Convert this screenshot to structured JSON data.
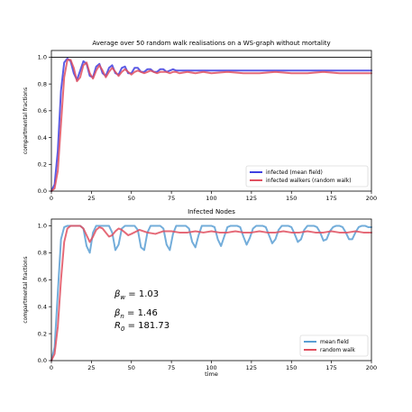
{
  "chart_data": [
    {
      "type": "line",
      "title": "Average over 50 random walk realisations on a WS-graph without mortality",
      "xlabel": "",
      "ylabel": "compartmental fractions",
      "xlim": [
        0,
        200
      ],
      "ylim": [
        0,
        1.05
      ],
      "xticks": [
        0,
        25,
        50,
        75,
        100,
        125,
        150,
        175,
        200
      ],
      "yticks": [
        0.0,
        0.2,
        0.4,
        0.6,
        0.8,
        1.0
      ],
      "ytick_labels": [
        "0.0",
        "0.2",
        "0.4",
        "0.6",
        "0.8",
        "1.0"
      ],
      "hline": 1.0,
      "legend_position": "bottom-right",
      "grid": false,
      "series": [
        {
          "name": "infected (mean field)",
          "color": "#4040e0",
          "x": [
            0,
            2,
            4,
            6,
            8,
            10,
            12,
            14,
            16,
            18,
            20,
            22,
            24,
            26,
            28,
            30,
            32,
            34,
            36,
            38,
            40,
            42,
            44,
            46,
            48,
            50,
            52,
            54,
            56,
            58,
            60,
            62,
            64,
            66,
            68,
            70,
            72,
            74,
            76,
            78,
            80,
            85,
            90,
            95,
            100,
            110,
            120,
            130,
            140,
            150,
            160,
            170,
            180,
            190,
            200
          ],
          "y": [
            0.0,
            0.05,
            0.3,
            0.75,
            0.96,
            0.99,
            0.97,
            0.88,
            0.83,
            0.9,
            0.97,
            0.95,
            0.86,
            0.85,
            0.93,
            0.95,
            0.88,
            0.86,
            0.92,
            0.94,
            0.88,
            0.87,
            0.92,
            0.93,
            0.88,
            0.88,
            0.92,
            0.92,
            0.89,
            0.89,
            0.91,
            0.91,
            0.89,
            0.89,
            0.91,
            0.91,
            0.89,
            0.9,
            0.91,
            0.9,
            0.9,
            0.9,
            0.9,
            0.9,
            0.9,
            0.9,
            0.9,
            0.9,
            0.9,
            0.9,
            0.9,
            0.9,
            0.9,
            0.9,
            0.9
          ]
        },
        {
          "name": "infected walkers  (random walk)",
          "color": "#e05060",
          "x": [
            0,
            2,
            4,
            6,
            8,
            10,
            12,
            14,
            16,
            18,
            20,
            22,
            24,
            26,
            28,
            30,
            32,
            34,
            36,
            38,
            40,
            42,
            44,
            46,
            48,
            50,
            52,
            54,
            56,
            58,
            60,
            62,
            64,
            66,
            68,
            70,
            72,
            74,
            76,
            78,
            80,
            85,
            90,
            95,
            100,
            110,
            120,
            130,
            140,
            150,
            160,
            170,
            180,
            190,
            200
          ],
          "y": [
            0.0,
            0.02,
            0.15,
            0.5,
            0.85,
            0.98,
            0.98,
            0.92,
            0.82,
            0.85,
            0.94,
            0.96,
            0.88,
            0.84,
            0.9,
            0.94,
            0.9,
            0.85,
            0.89,
            0.92,
            0.89,
            0.86,
            0.89,
            0.91,
            0.89,
            0.87,
            0.89,
            0.9,
            0.89,
            0.88,
            0.89,
            0.9,
            0.89,
            0.88,
            0.89,
            0.89,
            0.89,
            0.88,
            0.89,
            0.89,
            0.88,
            0.89,
            0.88,
            0.89,
            0.88,
            0.89,
            0.88,
            0.88,
            0.89,
            0.88,
            0.88,
            0.89,
            0.88,
            0.88,
            0.88
          ]
        }
      ]
    },
    {
      "type": "line",
      "title": "Infected Nodes",
      "xlabel": "time",
      "ylabel": "compartmental fractions",
      "xlim": [
        0,
        200
      ],
      "ylim": [
        0,
        1.05
      ],
      "xticks": [
        0,
        25,
        50,
        75,
        100,
        125,
        150,
        175,
        200
      ],
      "yticks": [
        0.0,
        0.2,
        0.4,
        0.6,
        0.8,
        1.0
      ],
      "ytick_labels": [
        "0.0",
        "0.2",
        "0.4",
        "0.6",
        "0.8",
        "1.0"
      ],
      "legend_position": "bottom-right",
      "grid": false,
      "annotations": [
        {
          "label": "β_w = 1.03",
          "base": "β",
          "sub": "w",
          "rest": " = 1.03"
        },
        {
          "label": "β_n = 1.46",
          "base": "β",
          "sub": "n",
          "rest": " = 1.46"
        },
        {
          "label": "R_0 = 181.73",
          "base": "R",
          "sub": "0",
          "rest": " = 181.73"
        }
      ],
      "series": [
        {
          "name": "mean field",
          "color": "#5a9fd4",
          "x": [
            0,
            2,
            4,
            6,
            8,
            10,
            12,
            14,
            16,
            18,
            20,
            22,
            24,
            26,
            28,
            30,
            32,
            34,
            36,
            38,
            40,
            42,
            44,
            46,
            48,
            50,
            52,
            54,
            56,
            58,
            60,
            62,
            64,
            66,
            68,
            70,
            72,
            74,
            76,
            78,
            80,
            82,
            84,
            86,
            88,
            90,
            92,
            94,
            96,
            98,
            100,
            102,
            104,
            106,
            108,
            110,
            112,
            114,
            116,
            118,
            120,
            122,
            124,
            126,
            128,
            130,
            132,
            134,
            136,
            138,
            140,
            142,
            144,
            146,
            148,
            150,
            152,
            154,
            156,
            158,
            160,
            162,
            164,
            166,
            168,
            170,
            172,
            174,
            176,
            178,
            180,
            182,
            184,
            186,
            188,
            190,
            192,
            194,
            196,
            198,
            200
          ],
          "y": [
            0.0,
            0.1,
            0.5,
            0.9,
            0.99,
            1.0,
            1.0,
            1.0,
            1.0,
            1.0,
            0.98,
            0.85,
            0.8,
            0.95,
            1.0,
            1.0,
            1.0,
            1.0,
            1.0,
            0.95,
            0.82,
            0.86,
            0.98,
            1.0,
            1.0,
            1.0,
            1.0,
            0.97,
            0.84,
            0.82,
            0.95,
            1.0,
            1.0,
            1.0,
            1.0,
            0.98,
            0.86,
            0.82,
            0.94,
            1.0,
            1.0,
            1.0,
            1.0,
            0.98,
            0.88,
            0.84,
            0.93,
            1.0,
            1.0,
            1.0,
            1.0,
            0.99,
            0.9,
            0.85,
            0.92,
            0.99,
            1.0,
            1.0,
            1.0,
            0.99,
            0.92,
            0.86,
            0.91,
            0.98,
            1.0,
            1.0,
            1.0,
            0.99,
            0.93,
            0.87,
            0.9,
            0.97,
            1.0,
            1.0,
            1.0,
            0.99,
            0.94,
            0.88,
            0.9,
            0.97,
            1.0,
            1.0,
            1.0,
            0.99,
            0.95,
            0.89,
            0.9,
            0.96,
            0.99,
            1.0,
            1.0,
            0.99,
            0.95,
            0.9,
            0.9,
            0.95,
            0.99,
            1.0,
            1.0,
            0.99,
            0.99
          ]
        },
        {
          "name": "random walk",
          "color": "#e05060",
          "x": [
            0,
            2,
            4,
            6,
            8,
            10,
            12,
            14,
            16,
            18,
            20,
            22,
            24,
            26,
            28,
            30,
            32,
            34,
            36,
            38,
            40,
            42,
            44,
            46,
            48,
            50,
            55,
            60,
            65,
            70,
            75,
            80,
            85,
            90,
            95,
            100,
            105,
            110,
            115,
            120,
            125,
            130,
            135,
            140,
            145,
            150,
            155,
            160,
            165,
            170,
            175,
            180,
            185,
            190,
            195,
            200
          ],
          "y": [
            0.0,
            0.05,
            0.25,
            0.6,
            0.88,
            0.98,
            1.0,
            1.0,
            1.0,
            1.0,
            0.98,
            0.93,
            0.88,
            0.92,
            0.97,
            0.99,
            0.98,
            0.95,
            0.92,
            0.93,
            0.96,
            0.98,
            0.97,
            0.95,
            0.93,
            0.94,
            0.97,
            0.95,
            0.94,
            0.96,
            0.96,
            0.95,
            0.95,
            0.96,
            0.95,
            0.96,
            0.95,
            0.95,
            0.96,
            0.95,
            0.95,
            0.96,
            0.95,
            0.95,
            0.96,
            0.95,
            0.95,
            0.96,
            0.95,
            0.95,
            0.96,
            0.95,
            0.95,
            0.96,
            0.95,
            0.95
          ]
        }
      ]
    }
  ]
}
